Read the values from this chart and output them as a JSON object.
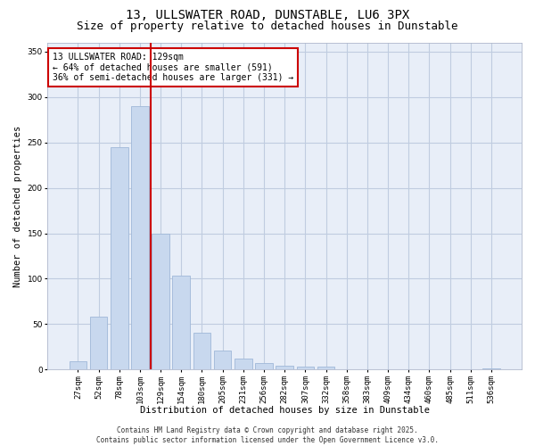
{
  "title": "13, ULLSWATER ROAD, DUNSTABLE, LU6 3PX",
  "subtitle": "Size of property relative to detached houses in Dunstable",
  "xlabel": "Distribution of detached houses by size in Dunstable",
  "ylabel": "Number of detached properties",
  "categories": [
    "27sqm",
    "52sqm",
    "78sqm",
    "103sqm",
    "129sqm",
    "154sqm",
    "180sqm",
    "205sqm",
    "231sqm",
    "256sqm",
    "282sqm",
    "307sqm",
    "332sqm",
    "358sqm",
    "383sqm",
    "409sqm",
    "434sqm",
    "460sqm",
    "485sqm",
    "511sqm",
    "536sqm"
  ],
  "values": [
    9,
    58,
    245,
    290,
    150,
    103,
    41,
    21,
    12,
    7,
    4,
    3,
    3,
    0,
    0,
    0,
    0,
    0,
    0,
    0,
    1
  ],
  "bar_color": "#c8d8ee",
  "bar_edge_color": "#a0b8d8",
  "vline_color": "#cc0000",
  "annotation_text": "13 ULLSWATER ROAD: 129sqm\n← 64% of detached houses are smaller (591)\n36% of semi-detached houses are larger (331) →",
  "annotation_box_color": "#ffffff",
  "annotation_box_edge": "#cc0000",
  "ylim": [
    0,
    360
  ],
  "yticks": [
    0,
    50,
    100,
    150,
    200,
    250,
    300,
    350
  ],
  "footer": "Contains HM Land Registry data © Crown copyright and database right 2025.\nContains public sector information licensed under the Open Government Licence v3.0.",
  "bg_color": "#ffffff",
  "plot_bg_color": "#e8eef8",
  "grid_color": "#c0cce0",
  "title_fontsize": 10,
  "subtitle_fontsize": 9,
  "axis_label_fontsize": 7.5,
  "tick_fontsize": 6.5,
  "annotation_fontsize": 7,
  "footer_fontsize": 5.5
}
